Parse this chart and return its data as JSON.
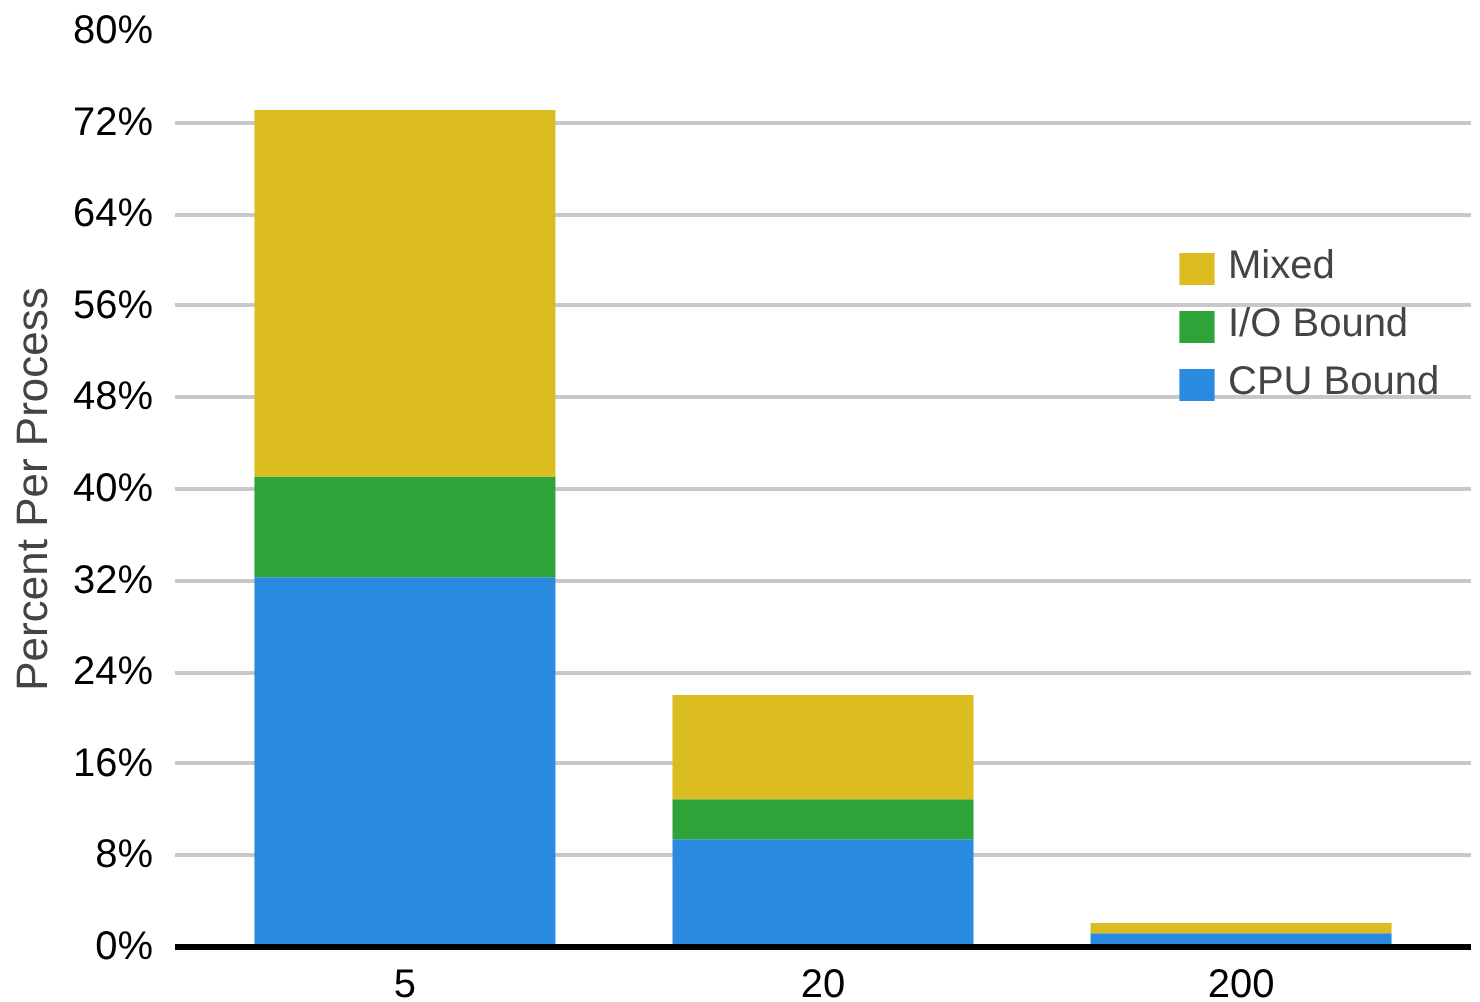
{
  "chart_data": {
    "type": "bar",
    "stacked": true,
    "ylabel": "Percent Per Process",
    "categories": [
      "5",
      "20",
      "200"
    ],
    "series": [
      {
        "name": "CPU Bound",
        "color": "#2a8ae0",
        "values": [
          32.3,
          9.4,
          1.2
        ]
      },
      {
        "name": "I/O Bound",
        "color": "#2ea33a",
        "values": [
          8.8,
          3.5,
          0
        ]
      },
      {
        "name": "Mixed",
        "color": "#dcbd20",
        "values": [
          32.0,
          9.1,
          0.9
        ]
      }
    ],
    "ylim": [
      0,
      80
    ],
    "yticks": [
      {
        "value": 0,
        "label": "0%"
      },
      {
        "value": 8,
        "label": "8%"
      },
      {
        "value": 16,
        "label": "16%"
      },
      {
        "value": 24,
        "label": "24%"
      },
      {
        "value": 32,
        "label": "32%"
      },
      {
        "value": 40,
        "label": "40%"
      },
      {
        "value": 48,
        "label": "48%"
      },
      {
        "value": 56,
        "label": "56%"
      },
      {
        "value": 64,
        "label": "64%"
      },
      {
        "value": 72,
        "label": "72%"
      },
      {
        "value": 80,
        "label": "80%"
      }
    ],
    "grid": "y",
    "legend": "right"
  }
}
